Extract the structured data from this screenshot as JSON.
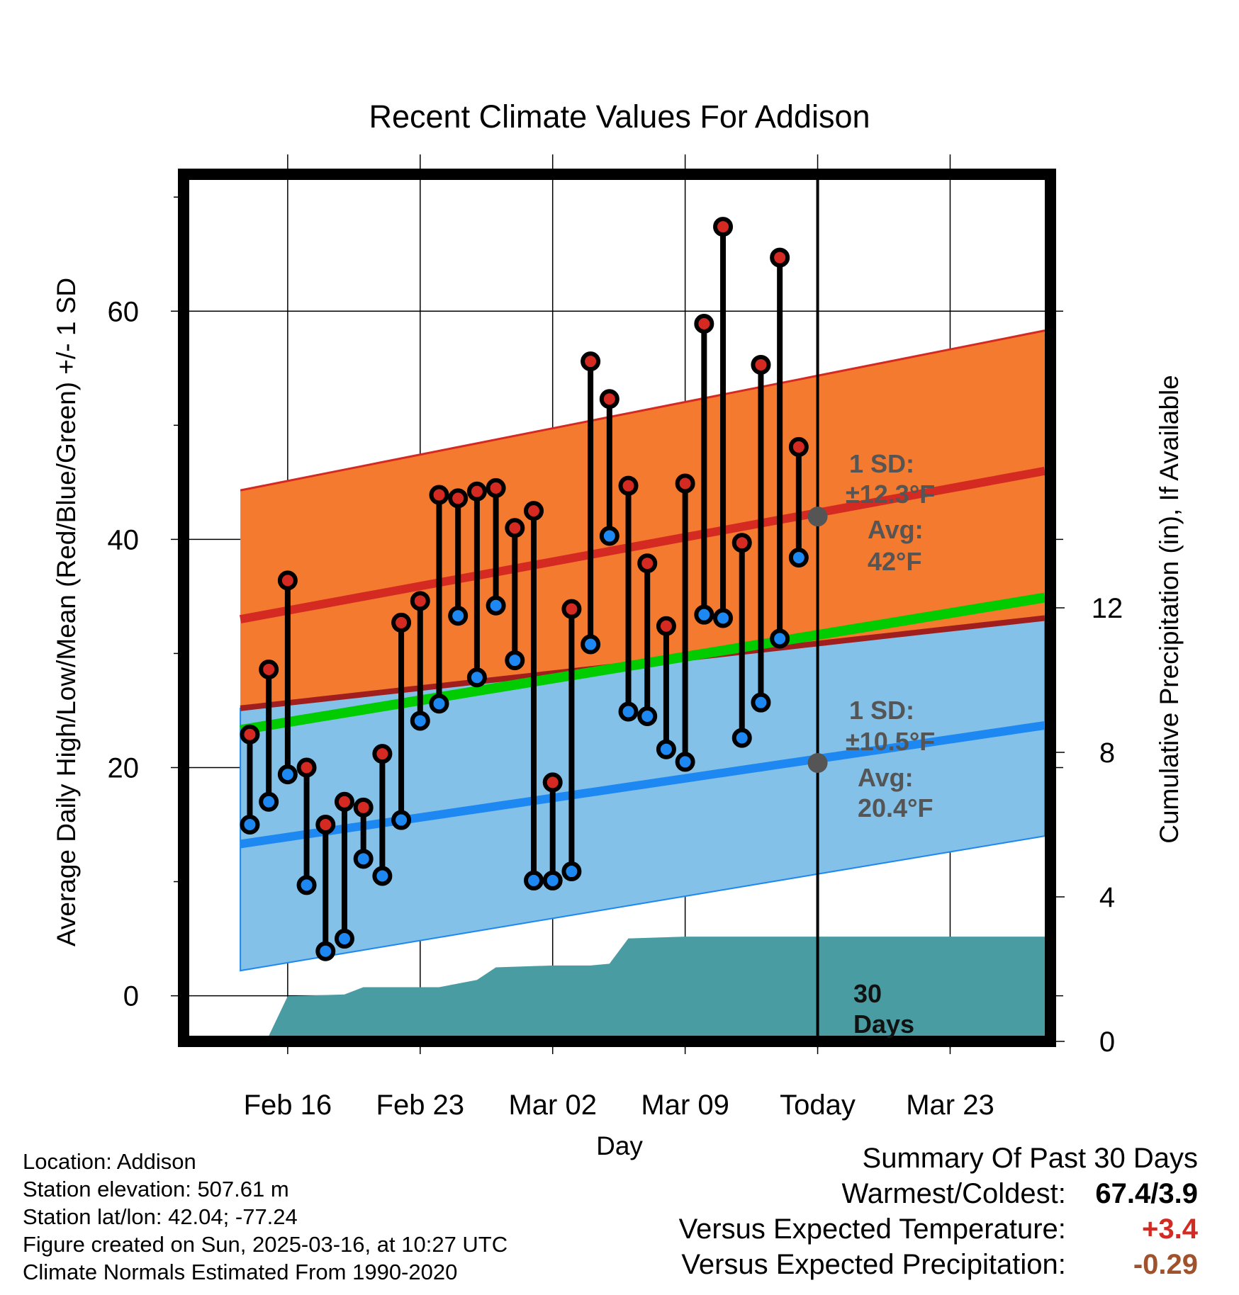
{
  "chart_data": {
    "type": "line",
    "title": "Recent Climate Values For Addison",
    "xlabel": "Day",
    "ylabel": "Average Daily High/Low/Mean (Red/Blue/Green) +/- 1 SD",
    "y2label": "Cumulative Precipitation (in), If Available",
    "ylim": [
      -4,
      72
    ],
    "y2lim": [
      0,
      24
    ],
    "xlim": [
      -5.5,
      40.3
    ],
    "x_ticks": [
      {
        "x": 0,
        "label": "Feb 16"
      },
      {
        "x": 7,
        "label": "Feb 23"
      },
      {
        "x": 14,
        "label": "Mar 02"
      },
      {
        "x": 21,
        "label": "Mar 09"
      },
      {
        "x": 28,
        "label": "Today"
      },
      {
        "x": 35,
        "label": "Mar 23"
      }
    ],
    "y_ticks": [
      0,
      20,
      40,
      60
    ],
    "y2_ticks": [
      0,
      4,
      8,
      12
    ],
    "today_x": 28,
    "days": [
      -2,
      -1,
      0,
      1,
      2,
      3,
      4,
      5,
      6,
      7,
      8,
      9,
      10,
      11,
      12,
      13,
      14,
      15,
      16,
      17,
      18,
      19,
      20,
      21,
      22,
      23,
      24,
      25,
      26,
      27
    ],
    "highs": [
      22.9,
      28.6,
      36.4,
      20.0,
      15.0,
      17.0,
      16.5,
      21.2,
      32.7,
      34.6,
      43.9,
      43.6,
      44.2,
      44.5,
      41.0,
      42.5,
      18.7,
      33.9,
      55.6,
      52.3,
      44.7,
      37.9,
      32.4,
      44.9,
      58.9,
      67.4,
      39.7,
      55.3,
      64.7,
      48.1
    ],
    "lows": [
      15.0,
      17.0,
      19.4,
      9.7,
      3.9,
      5.0,
      12.0,
      10.5,
      15.4,
      24.1,
      25.6,
      33.3,
      27.9,
      34.2,
      29.4,
      10.1,
      10.1,
      10.9,
      30.8,
      40.3,
      24.9,
      24.5,
      21.6,
      20.5,
      33.4,
      33.1,
      22.6,
      25.7,
      31.3,
      38.4
    ],
    "normals_x": [
      -2.5,
      40.0
    ],
    "normal_high": [
      33.0,
      46.0
    ],
    "normal_high_upper": [
      44.3,
      58.3
    ],
    "normal_low": [
      13.3,
      23.7
    ],
    "normal_low_lower": [
      2.2,
      14.0
    ],
    "normal_low_upper": [
      25.2,
      33.1
    ],
    "normal_mean": [
      23.3,
      34.9
    ],
    "precip_x": [
      -2.5,
      -1.8,
      -1.0,
      0.0,
      3.0,
      4.0,
      8.0,
      10.0,
      11.0,
      14.0,
      16.0,
      17.0,
      18.0,
      21.0,
      28.0,
      40.0
    ],
    "precip": [
      0.0,
      0.0,
      0.15,
      1.25,
      1.3,
      1.5,
      1.5,
      1.7,
      2.05,
      2.1,
      2.1,
      2.15,
      2.85,
      2.9,
      2.9,
      2.9
    ],
    "annotations": {
      "high_sd": "1 SD:",
      "high_sd_value": "±12.3°F",
      "high_avg": "Avg:",
      "high_avg_value": "42°F",
      "low_sd": "1 SD:",
      "low_sd_value": "±10.5°F",
      "low_avg": "Avg:",
      "low_avg_value": "20.4°F",
      "today_high_avg": 42.0,
      "today_low_avg": 20.4,
      "days_label_1": "30",
      "days_label_2": "Days"
    },
    "colors": {
      "high_band": "#f47a30",
      "high_line": "#d42a22",
      "low_band": "#83c1e8",
      "low_line": "#1e88f2",
      "mean_line": "#00cc00",
      "precip_fill": "#4a9ca3",
      "high_marker": "#d42a22",
      "low_marker": "#1e88f2"
    }
  },
  "info": {
    "location": "Location: Addison",
    "elevation": "Station elevation: 507.61 m",
    "latlon": "Station lat/lon: 42.04; -77.24",
    "created": "Figure created on Sun, 2025-03-16, at 10:27 UTC",
    "normals": "Climate Normals Estimated From 1990-2020"
  },
  "summary": {
    "title": "Summary Of Past 30 Days",
    "warmest_label": "Warmest/Coldest:",
    "warmest_value": "67.4/3.9",
    "temp_label": "Versus Expected Temperature:",
    "temp_value": "+3.4",
    "temp_color": "#d42a22",
    "precip_label": "Versus Expected Precipitation:",
    "precip_value": "-0.29",
    "precip_color": "#a0522d"
  }
}
